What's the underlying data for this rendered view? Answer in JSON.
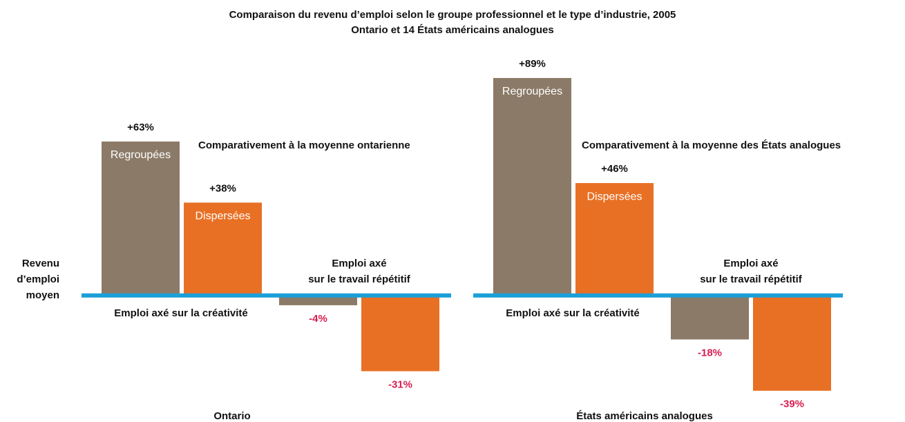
{
  "title": "Comparaison du revenu d’emploi selon le groupe professionnel et le type d’industrie, 2005",
  "subtitle": "Ontario et 14 États américains analogues",
  "ylabel": "Revenu\nd’emploi\nmoyen",
  "chart_data": [
    {
      "type": "bar",
      "label": "Ontario",
      "note": "Comparativement à la moyenne ontarienne",
      "categories": [
        "Emploi axé sur la créativité",
        "Emploi axé\nsur le travail répétitif"
      ],
      "series": [
        {
          "name": "Regroupées",
          "color": "#8b7a67",
          "values": [
            63,
            -4
          ],
          "value_labels": [
            "+63%",
            "-4%"
          ]
        },
        {
          "name": "Dispersées",
          "color": "#e87024",
          "values": [
            38,
            -31
          ],
          "value_labels": [
            "+38%",
            "-31%"
          ]
        }
      ],
      "ylim": [
        -45,
        100
      ]
    },
    {
      "type": "bar",
      "label": "États américains analogues",
      "note": "Comparativement à la moyenne des États analogues",
      "categories": [
        "Emploi axé sur la créativité",
        "Emploi axé\nsur le travail répétitif"
      ],
      "series": [
        {
          "name": "Regroupées",
          "color": "#8b7a67",
          "values": [
            89,
            -18
          ],
          "value_labels": [
            "+89%",
            "-18%"
          ]
        },
        {
          "name": "Dispersées",
          "color": "#e87024",
          "values": [
            46,
            -39
          ],
          "value_labels": [
            "+46%",
            "-39%"
          ]
        }
      ],
      "ylim": [
        -45,
        100
      ]
    }
  ]
}
